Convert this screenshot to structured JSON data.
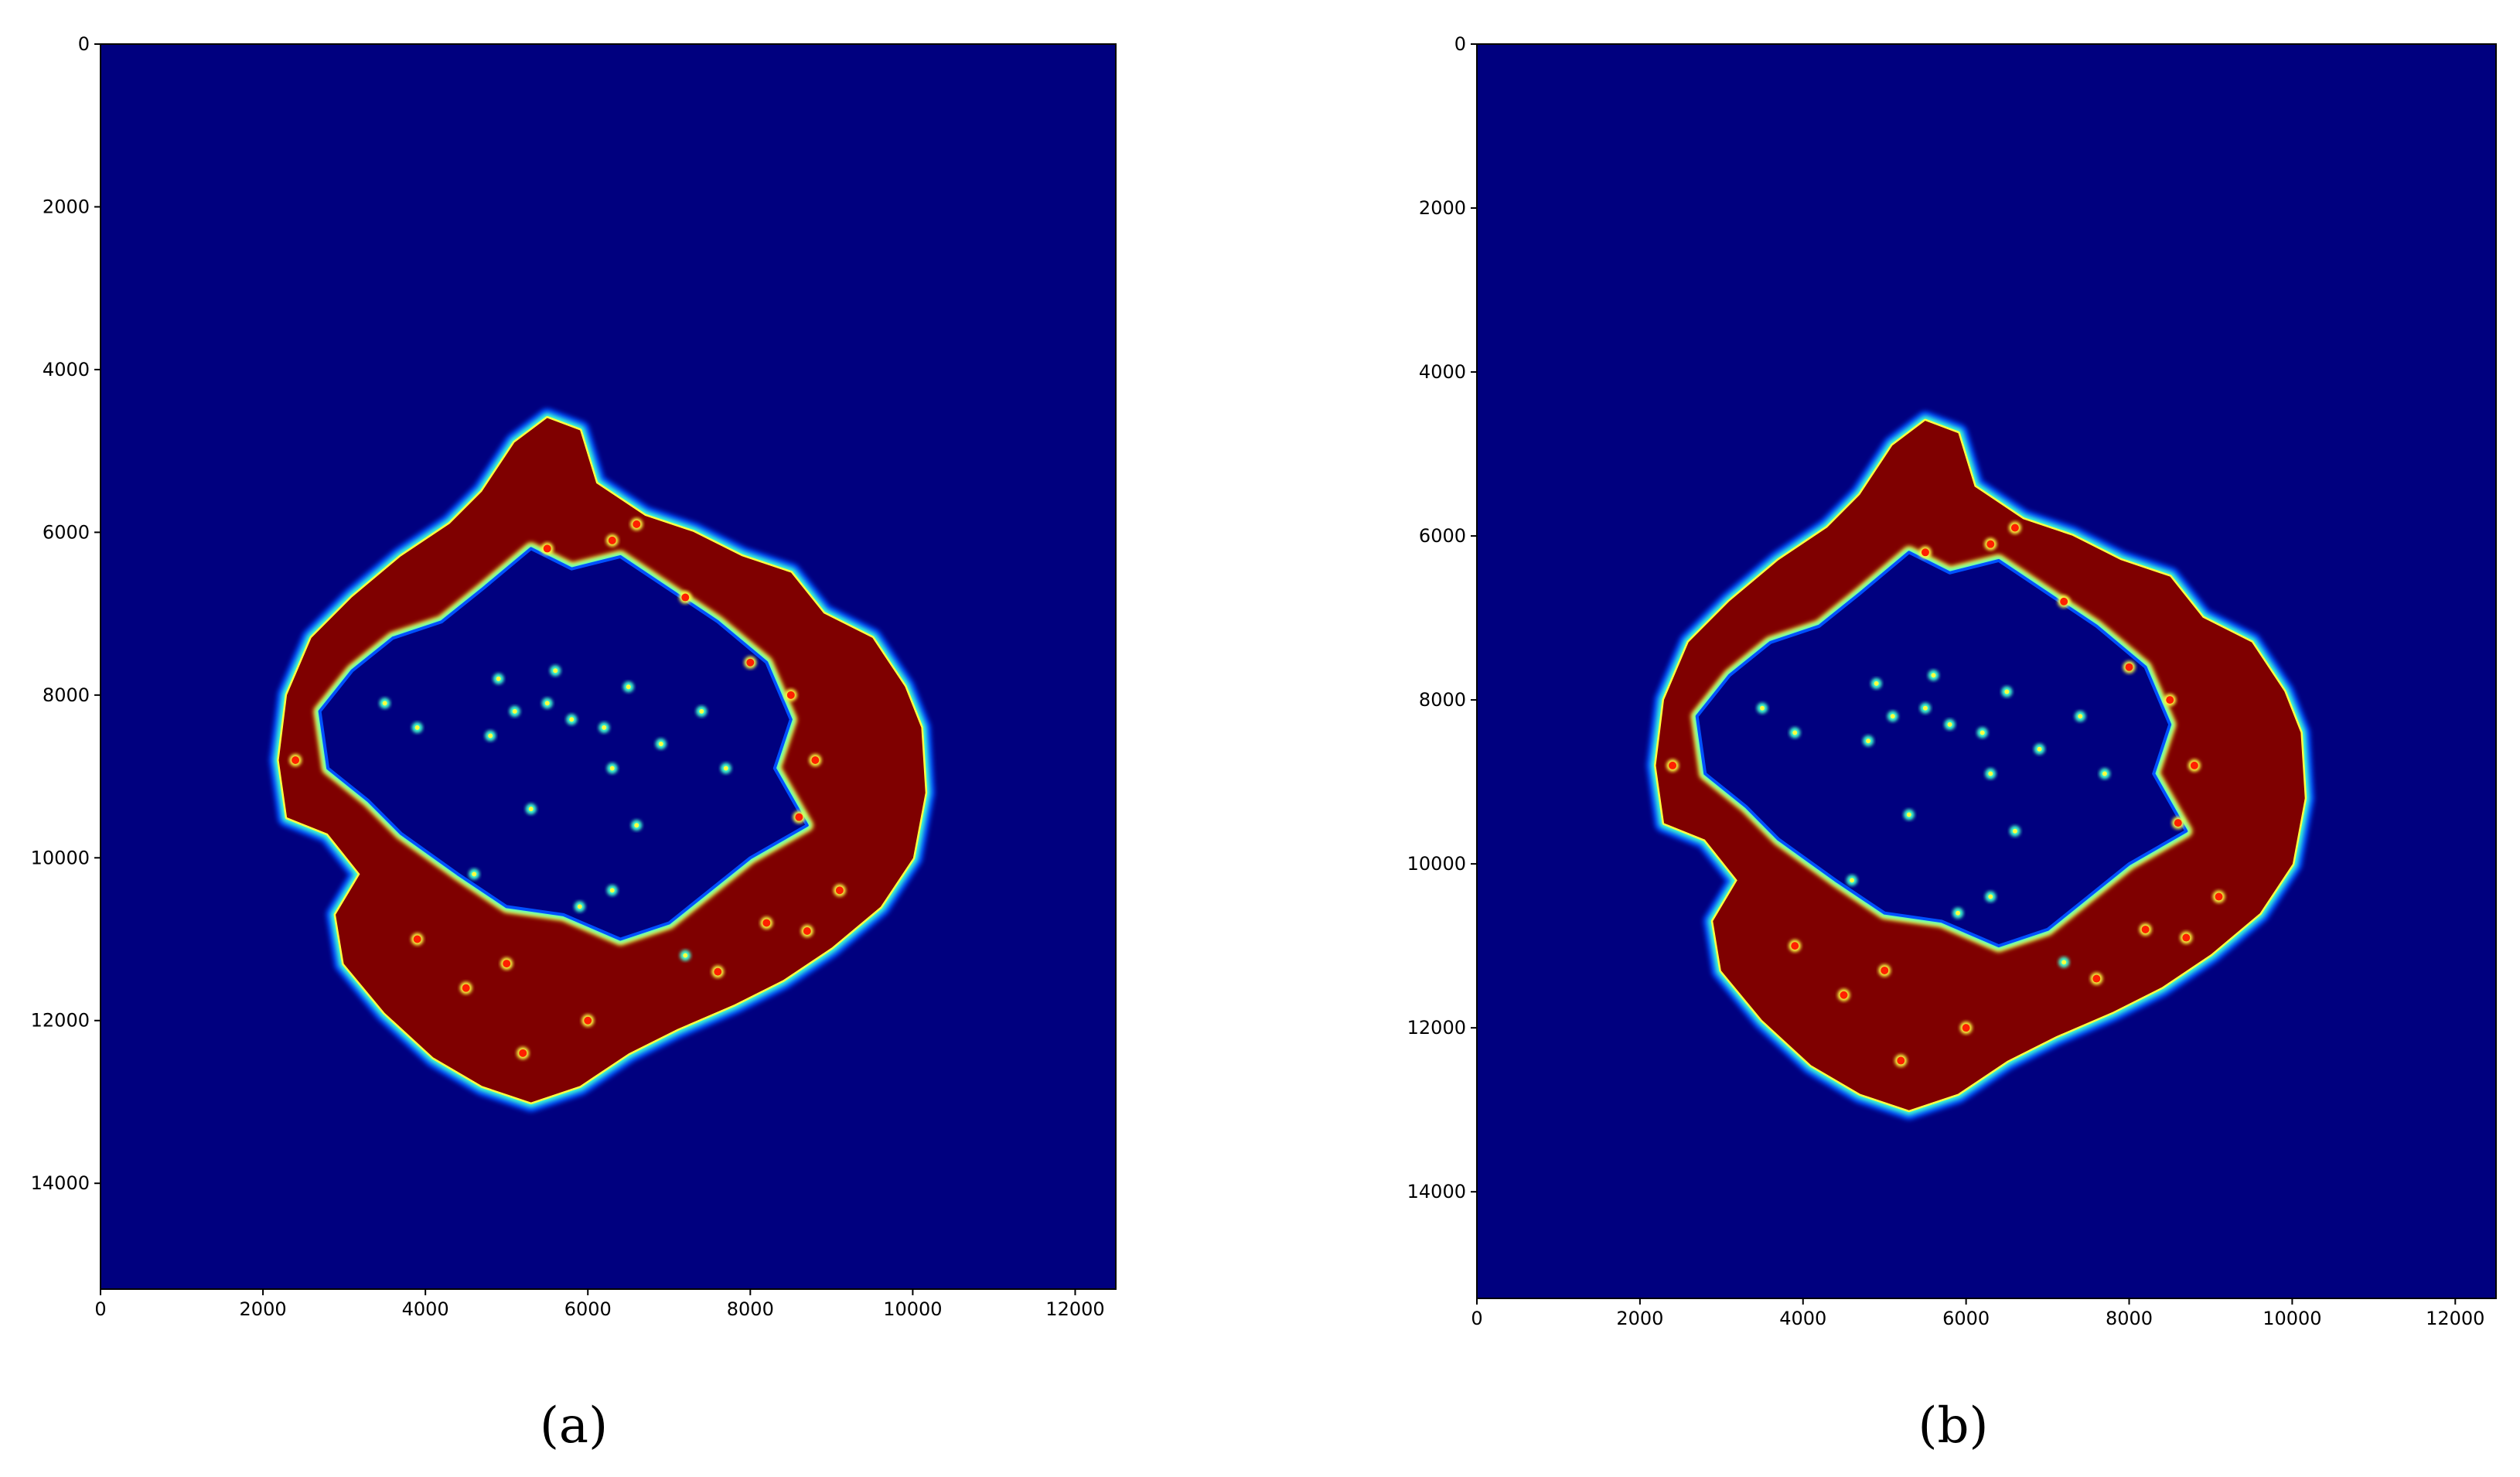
{
  "chart_data": [
    {
      "type": "heatmap",
      "caption": "(a)",
      "colormap": "jet",
      "xlim": [
        0,
        12500
      ],
      "ylim": [
        15300,
        0
      ],
      "x_ticks": [
        0,
        2000,
        4000,
        6000,
        8000,
        10000,
        12000
      ],
      "y_ticks": [
        0,
        2000,
        4000,
        6000,
        8000,
        10000,
        12000,
        14000
      ],
      "x_tick_labels": [
        "0",
        "2000",
        "4000",
        "6000",
        "8000",
        "10000",
        "12000"
      ],
      "y_tick_labels": [
        "0",
        "2000",
        "4000",
        "6000",
        "8000",
        "10000",
        "12000",
        "14000"
      ],
      "grid": false,
      "title": "",
      "xlabel": "",
      "ylabel": ""
    },
    {
      "type": "heatmap",
      "caption": "(b)",
      "colormap": "jet",
      "xlim": [
        0,
        12500
      ],
      "ylim": [
        15300,
        0
      ],
      "x_ticks": [
        0,
        2000,
        4000,
        6000,
        8000,
        10000,
        12000
      ],
      "y_ticks": [
        0,
        2000,
        4000,
        6000,
        8000,
        10000,
        12000,
        14000
      ],
      "x_tick_labels": [
        "0",
        "2000",
        "4000",
        "6000",
        "8000",
        "10000",
        "12000"
      ],
      "y_tick_labels": [
        "0",
        "2000",
        "4000",
        "6000",
        "8000",
        "10000",
        "12000",
        "14000"
      ],
      "grid": false,
      "title": "",
      "xlabel": "",
      "ylabel": ""
    }
  ],
  "colors": {
    "background": "#00007f",
    "high": "#7f0000",
    "mid_red": "#ff2000",
    "yellow": "#ffff40",
    "cyan": "#40ffd0",
    "blue_edge": "#0050ff"
  }
}
